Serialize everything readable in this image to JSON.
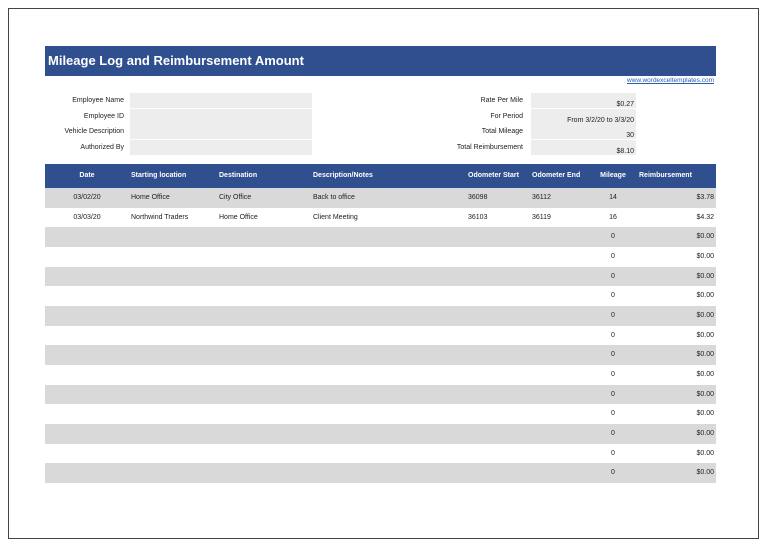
{
  "header": {
    "title": "Mileage Log and Reimbursement Amount",
    "link": "www.wordexceltemplates.com"
  },
  "info": {
    "left": [
      {
        "label": "Employee Name"
      },
      {
        "label": "Employee ID"
      },
      {
        "label": "Vehicle Description"
      },
      {
        "label": "Authorized By"
      }
    ],
    "right": [
      {
        "label": "Rate Per Mile",
        "value": "$0.27"
      },
      {
        "label": "For Period",
        "value": "From 3/2/20 to 3/3/20"
      },
      {
        "label": "Total Mileage",
        "value": 30
      },
      {
        "label": "Total Reimbursement",
        "value": "$8.10"
      }
    ]
  },
  "table": {
    "columns": [
      "Date",
      "Starting location",
      "Destination",
      "Description/Notes",
      "Odometer Start",
      "Odometer End",
      "Mileage",
      "Reimbursement"
    ],
    "rows": [
      {
        "date": "03/02/20",
        "start": "Home Office",
        "destination": "City Office",
        "notes": "Back to office",
        "odo_start": 36098,
        "odo_end": 36112,
        "mileage": 14,
        "reimbursement": "$3.78"
      },
      {
        "date": "03/03/20",
        "start": "Northwind Traders",
        "destination": "Home Office",
        "notes": "Client Meeting",
        "odo_start": 36103,
        "odo_end": 36119,
        "mileage": 16,
        "reimbursement": "$4.32"
      },
      {
        "mileage": 0,
        "reimbursement": "$0.00"
      },
      {
        "mileage": 0,
        "reimbursement": "$0.00"
      },
      {
        "mileage": 0,
        "reimbursement": "$0.00"
      },
      {
        "mileage": 0,
        "reimbursement": "$0.00"
      },
      {
        "mileage": 0,
        "reimbursement": "$0.00"
      },
      {
        "mileage": 0,
        "reimbursement": "$0.00"
      },
      {
        "mileage": 0,
        "reimbursement": "$0.00"
      },
      {
        "mileage": 0,
        "reimbursement": "$0.00"
      },
      {
        "mileage": 0,
        "reimbursement": "$0.00"
      },
      {
        "mileage": 0,
        "reimbursement": "$0.00"
      },
      {
        "mileage": 0,
        "reimbursement": "$0.00"
      },
      {
        "mileage": 0,
        "reimbursement": "$0.00"
      },
      {
        "mileage": 0,
        "reimbursement": "$0.00"
      }
    ]
  }
}
